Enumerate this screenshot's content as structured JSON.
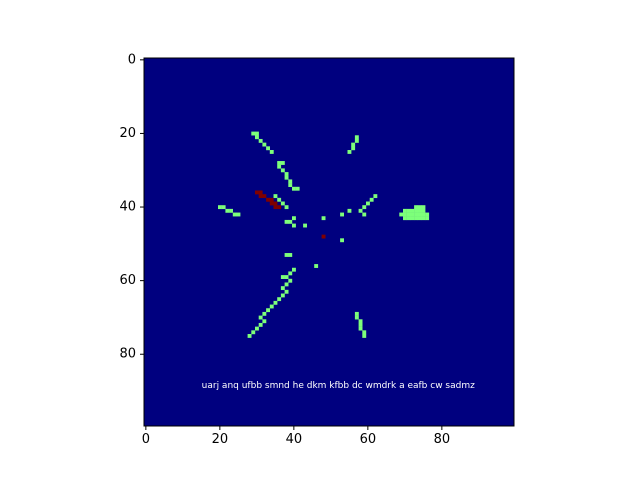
{
  "chart_data": {
    "type": "heatmap",
    "title": "",
    "xlabel": "",
    "ylabel": "",
    "grid": false,
    "origin": "upper",
    "extent": [
      -0.5,
      99.5,
      99.5,
      -0.5
    ],
    "xlim": [
      -0.5,
      99.5
    ],
    "ylim": [
      99.5,
      -0.5
    ],
    "x_ticks": [
      0,
      20,
      40,
      60,
      80
    ],
    "y_ticks": [
      0,
      20,
      40,
      60,
      80
    ],
    "colormap": "jet",
    "colors": {
      "background": "#00007f",
      "streak": "#7dff7a",
      "hotspot": "#7f0000",
      "annotation_text": "#ffffff"
    },
    "annotation": {
      "text": "uarj anq ufbb smnd he dkm kfbb dc wmdrk a eafb cw sadmz",
      "x": 52,
      "y": 88.5
    },
    "segments": [
      {
        "value": "streak",
        "points": [
          [
            29,
            20
          ],
          [
            30,
            20
          ],
          [
            30,
            21
          ],
          [
            31,
            22
          ],
          [
            32,
            23
          ],
          [
            33,
            24
          ],
          [
            34,
            25
          ]
        ]
      },
      {
        "value": "streak",
        "points": [
          [
            36,
            28
          ],
          [
            37,
            28
          ],
          [
            36,
            29
          ],
          [
            37,
            30
          ],
          [
            38,
            31
          ],
          [
            38,
            32
          ],
          [
            39,
            33
          ],
          [
            39,
            34
          ],
          [
            40,
            35
          ],
          [
            41,
            35
          ]
        ]
      },
      {
        "value": "streak",
        "points": [
          [
            57,
            21
          ],
          [
            57,
            22
          ],
          [
            56,
            23
          ],
          [
            56,
            24
          ],
          [
            55,
            25
          ]
        ]
      },
      {
        "value": "streak",
        "points": [
          [
            20,
            40
          ],
          [
            21,
            40
          ],
          [
            22,
            41
          ],
          [
            23,
            41
          ],
          [
            24,
            42
          ],
          [
            25,
            42
          ]
        ]
      },
      {
        "value": "streak",
        "points": [
          [
            35,
            37
          ],
          [
            36,
            38
          ],
          [
            37,
            39
          ],
          [
            38,
            40
          ]
        ]
      },
      {
        "value": "streak",
        "points": [
          [
            62,
            37
          ],
          [
            61,
            38
          ],
          [
            60,
            39
          ],
          [
            59,
            40
          ],
          [
            58,
            41
          ],
          [
            59,
            42
          ]
        ]
      },
      {
        "value": "streak",
        "points": [
          [
            55,
            41
          ],
          [
            53,
            42
          ],
          [
            48,
            43
          ],
          [
            40,
            43
          ],
          [
            38,
            44
          ],
          [
            39,
            44
          ],
          [
            40,
            45
          ],
          [
            43,
            45
          ],
          [
            53,
            49
          ]
        ]
      },
      {
        "value": "streak",
        "points": [
          [
            38,
            53
          ],
          [
            39,
            53
          ],
          [
            46,
            56
          ],
          [
            40,
            57
          ],
          [
            39,
            58
          ],
          [
            38,
            59
          ],
          [
            37,
            59
          ],
          [
            39,
            60
          ],
          [
            38,
            61
          ],
          [
            37,
            62
          ],
          [
            38,
            63
          ],
          [
            37,
            64
          ],
          [
            36,
            65
          ],
          [
            35,
            66
          ],
          [
            34,
            67
          ],
          [
            33,
            68
          ],
          [
            32,
            69
          ],
          [
            31,
            70
          ],
          [
            32,
            71
          ],
          [
            31,
            72
          ],
          [
            30,
            73
          ],
          [
            29,
            74
          ],
          [
            28,
            75
          ]
        ]
      },
      {
        "value": "streak",
        "points": [
          [
            57,
            69
          ],
          [
            57,
            70
          ],
          [
            58,
            71
          ],
          [
            58,
            72
          ],
          [
            58,
            73
          ],
          [
            59,
            74
          ],
          [
            59,
            75
          ]
        ]
      },
      {
        "value": "hotspot",
        "points": [
          [
            30,
            36
          ],
          [
            31,
            36
          ],
          [
            31,
            37
          ],
          [
            32,
            37
          ],
          [
            33,
            38
          ],
          [
            34,
            38
          ],
          [
            34,
            39
          ],
          [
            35,
            39
          ],
          [
            35,
            40
          ],
          [
            36,
            40
          ],
          [
            48,
            48
          ]
        ]
      }
    ],
    "blobs": [
      {
        "value": "streak",
        "points": [
          [
            73,
            40
          ],
          [
            74,
            40
          ],
          [
            75,
            40
          ],
          [
            70,
            41
          ],
          [
            71,
            41
          ],
          [
            72,
            41
          ],
          [
            73,
            41
          ],
          [
            74,
            41
          ],
          [
            75,
            41
          ],
          [
            69,
            42
          ],
          [
            70,
            42
          ],
          [
            71,
            42
          ],
          [
            72,
            42
          ],
          [
            73,
            42
          ],
          [
            74,
            42
          ],
          [
            75,
            42
          ],
          [
            76,
            42
          ],
          [
            70,
            43
          ],
          [
            71,
            43
          ],
          [
            72,
            43
          ],
          [
            73,
            43
          ],
          [
            74,
            43
          ],
          [
            75,
            43
          ],
          [
            76,
            43
          ]
        ]
      }
    ]
  }
}
